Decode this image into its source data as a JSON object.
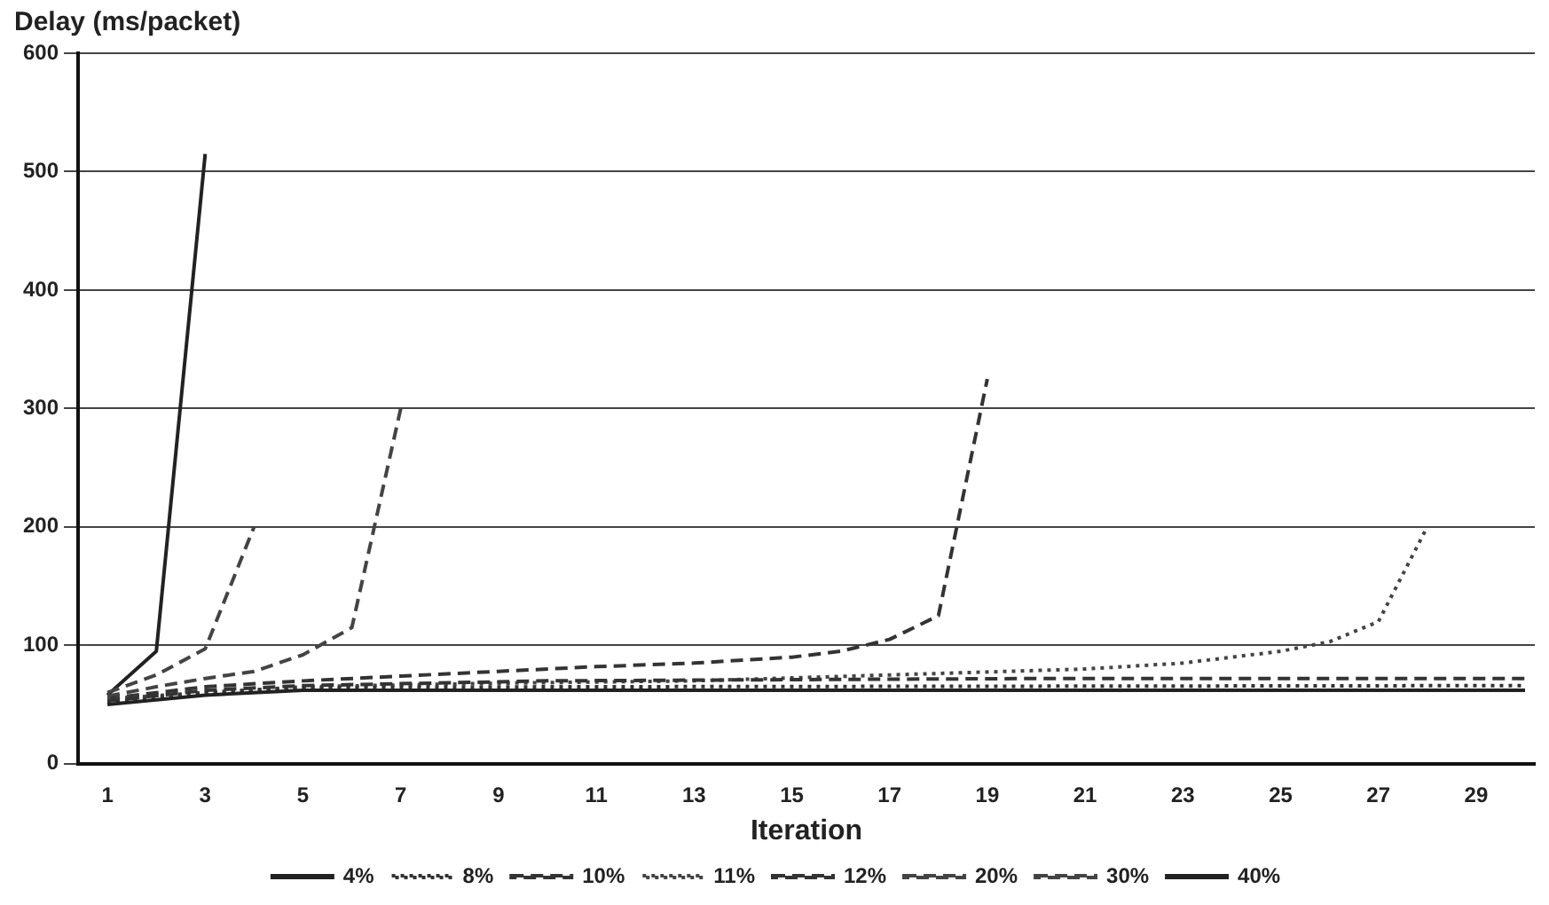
{
  "chart_data": {
    "type": "line",
    "xlabel": "Iteration",
    "ylabel": "Delay (ms/packet)",
    "xlim": [
      0.4,
      30.2
    ],
    "xticks": [
      1,
      3,
      5,
      7,
      9,
      11,
      13,
      15,
      17,
      19,
      21,
      23,
      25,
      27,
      29
    ],
    "ylim": [
      0,
      600
    ],
    "yticks": [
      0,
      100,
      200,
      300,
      400,
      500,
      600
    ],
    "grid": "y",
    "legend": "bottom",
    "marker": "none",
    "series": [
      {
        "name": "4%",
        "color": "#222222",
        "line_style": "solid",
        "x": [
          1,
          3,
          5,
          10,
          30
        ],
        "values": [
          50,
          58,
          62,
          62,
          62
        ]
      },
      {
        "name": "8%",
        "color": "#333333",
        "line_style": "dotted",
        "x": [
          1,
          3,
          5,
          10,
          30
        ],
        "values": [
          52,
          60,
          64,
          65,
          66
        ]
      },
      {
        "name": "10%",
        "color": "#333333",
        "line_style": "dashed",
        "x": [
          1,
          3,
          5,
          10,
          20,
          30
        ],
        "values": [
          53,
          62,
          66,
          70,
          72,
          72
        ]
      },
      {
        "name": "11%",
        "color": "#444444",
        "line_style": "dotted",
        "x": [
          1,
          5,
          9,
          13,
          17,
          21,
          23,
          25,
          26,
          27,
          28
        ],
        "values": [
          55,
          65,
          68,
          70,
          75,
          80,
          85,
          95,
          103,
          120,
          200
        ]
      },
      {
        "name": "12%",
        "color": "#333333",
        "line_style": "dashed",
        "x": [
          1,
          3,
          5,
          7,
          9,
          11,
          13,
          15,
          16,
          17,
          18,
          19
        ],
        "values": [
          55,
          65,
          70,
          74,
          78,
          82,
          85,
          90,
          95,
          105,
          125,
          325
        ]
      },
      {
        "name": "20%",
        "color": "#444444",
        "line_style": "dashed",
        "x": [
          1,
          2,
          3,
          4,
          5,
          6,
          7
        ],
        "values": [
          57,
          65,
          72,
          78,
          92,
          115,
          300
        ]
      },
      {
        "name": "30%",
        "color": "#444444",
        "line_style": "dashed",
        "x": [
          1,
          2,
          3,
          4
        ],
        "values": [
          60,
          75,
          97,
          200
        ]
      },
      {
        "name": "40%",
        "color": "#222222",
        "line_style": "solid",
        "x": [
          1,
          2,
          3
        ],
        "values": [
          58,
          95,
          515
        ]
      }
    ]
  }
}
